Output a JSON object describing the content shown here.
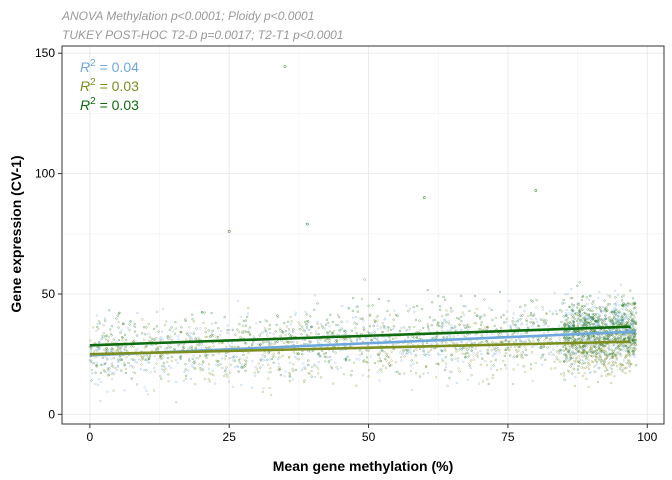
{
  "chart_data": {
    "type": "scatter",
    "subtitle_lines": [
      "ANOVA Methylation p<0.0001; Ploidy p<0.0001",
      "TUKEY POST-HOC T2-D p=0.0017; T2-T1 p<0.0001"
    ],
    "xlabel": "Mean gene methylation (%)",
    "ylabel": "Gene expression (CV-1)",
    "xlim": [
      -5,
      103
    ],
    "ylim": [
      -4,
      153
    ],
    "x_ticks": [
      0,
      25,
      50,
      75,
      100
    ],
    "x_tick_labels": [
      "0",
      "25",
      "50",
      "75",
      "100"
    ],
    "y_ticks": [
      0,
      50,
      100,
      150
    ],
    "y_tick_labels": [
      "0",
      "50",
      "100",
      "150"
    ],
    "grid": true,
    "series": [
      {
        "color": "#6fa8dc",
        "r2_label": "= 0.04",
        "fit": {
          "x": [
            0,
            98
          ],
          "y": [
            24.5,
            34.4
          ]
        }
      },
      {
        "color": "#7b8e1f",
        "r2_label": "= 0.03",
        "fit": {
          "x": [
            0,
            97
          ],
          "y": [
            25.0,
            30.2
          ]
        }
      },
      {
        "color": "#0e6b0e",
        "r2_label": "= 0.03",
        "fit": {
          "x": [
            0,
            97
          ],
          "y": [
            28.7,
            36.4
          ]
        }
      }
    ],
    "notable_points": [
      {
        "x": 35,
        "y": 144.5
      },
      {
        "x": 80,
        "y": 93
      },
      {
        "x": 60,
        "y": 90
      },
      {
        "x": 25,
        "y": 76
      },
      {
        "x": 39,
        "y": 79
      }
    ]
  }
}
